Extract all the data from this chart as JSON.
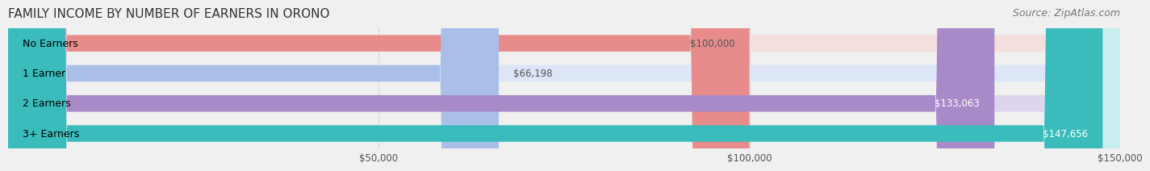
{
  "title": "FAMILY INCOME BY NUMBER OF EARNERS IN ORONO",
  "source": "Source: ZipAtlas.com",
  "categories": [
    "No Earners",
    "1 Earner",
    "2 Earners",
    "3+ Earners"
  ],
  "values": [
    100000,
    66198,
    133063,
    147656
  ],
  "bar_colors": [
    "#E88B8B",
    "#AABFE8",
    "#A98AC8",
    "#3ABCBC"
  ],
  "bar_bg_colors": [
    "#F5DEDE",
    "#DCE6F7",
    "#DDD5EE",
    "#C8EEEE"
  ],
  "label_colors": [
    "#555555",
    "#555555",
    "#ffffff",
    "#ffffff"
  ],
  "value_labels": [
    "$100,000",
    "$66,198",
    "$133,063",
    "$147,656"
  ],
  "xmin": 0,
  "xmax": 150000,
  "xticks": [
    50000,
    100000,
    150000
  ],
  "xtick_labels": [
    "$50,000",
    "$100,000",
    "$150,000"
  ],
  "background_color": "#f0f0f0",
  "bar_background_color": "#e8e8e8",
  "title_fontsize": 11,
  "source_fontsize": 9
}
